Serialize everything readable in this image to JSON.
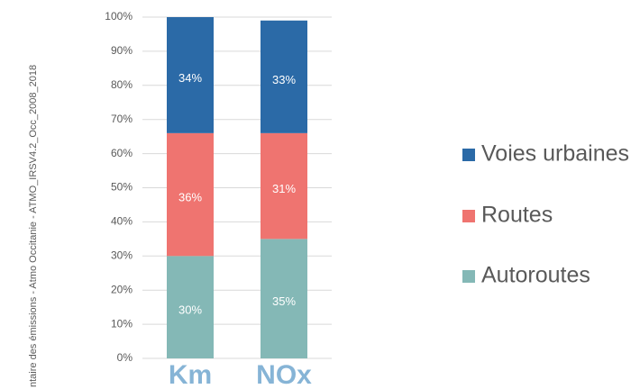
{
  "chart_data": {
    "type": "stacked_bar",
    "source": "ntaire des émissions - Atmo Occitanie - ATMO_IRSV4.2_Occ_2008_2018",
    "categories": [
      "Km",
      "NOx"
    ],
    "series": [
      {
        "name": "Autoroutes",
        "color": "#84b8b6",
        "values": [
          30,
          35
        ],
        "value_labels": [
          "30%",
          "35%"
        ]
      },
      {
        "name": "Routes",
        "color": "#ef7470",
        "values": [
          36,
          31
        ],
        "value_labels": [
          "36%",
          "31%"
        ]
      },
      {
        "name": "Voies urbaines",
        "color": "#2b6aa7",
        "values": [
          34,
          33
        ],
        "value_labels": [
          "34%",
          "33%"
        ]
      }
    ],
    "ylim": [
      0,
      100
    ],
    "yticks": [
      {
        "value": 0,
        "label": "0%"
      },
      {
        "value": 10,
        "label": "10%"
      },
      {
        "value": 20,
        "label": "20%"
      },
      {
        "value": 30,
        "label": "30%"
      },
      {
        "value": 40,
        "label": "40%"
      },
      {
        "value": 50,
        "label": "50%"
      },
      {
        "value": 60,
        "label": "60%"
      },
      {
        "value": 70,
        "label": "70%"
      },
      {
        "value": 80,
        "label": "80%"
      },
      {
        "value": 90,
        "label": "90%"
      },
      {
        "value": 100,
        "label": "100%"
      }
    ],
    "grid": true,
    "legend": "right"
  }
}
